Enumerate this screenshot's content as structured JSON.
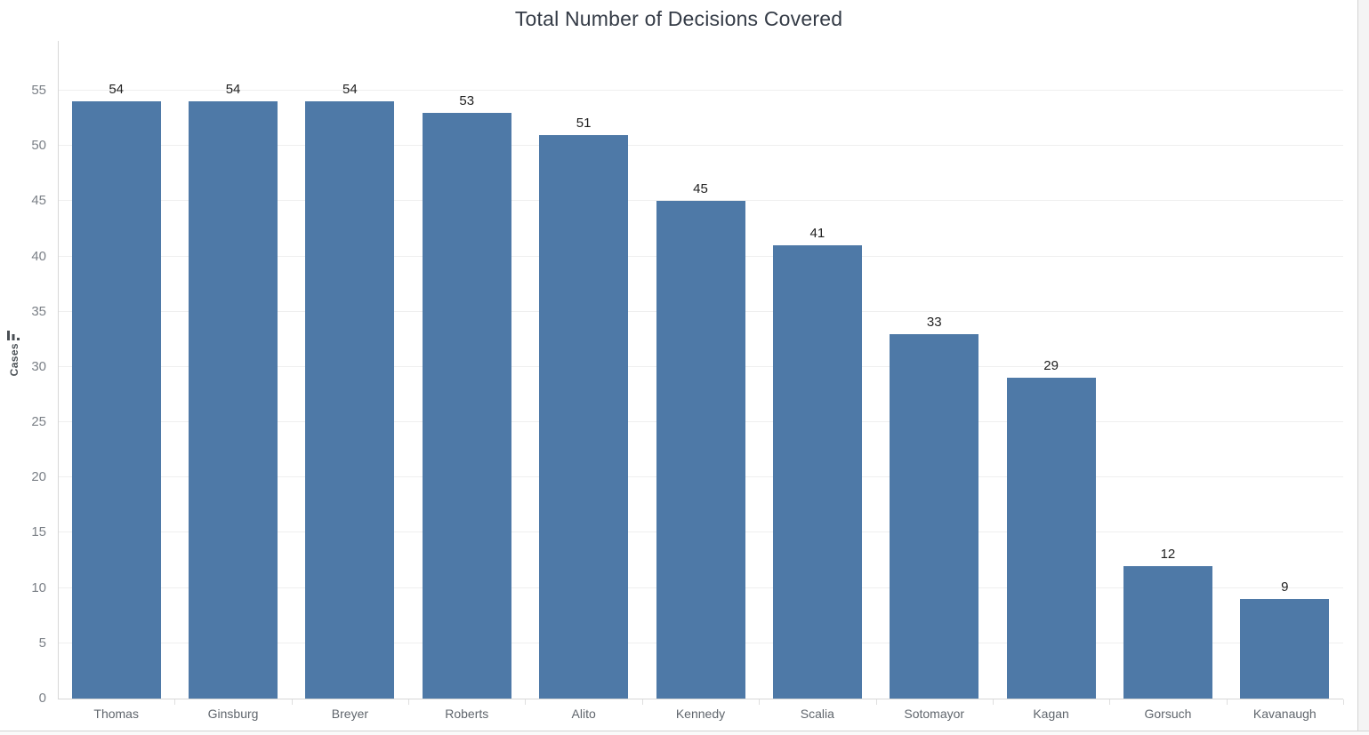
{
  "chart_data": {
    "type": "bar",
    "title": "Total Number of Decisions Covered",
    "xlabel": "",
    "ylabel": "Cases",
    "categories": [
      "Thomas",
      "Ginsburg",
      "Breyer",
      "Roberts",
      "Alito",
      "Kennedy",
      "Scalia",
      "Sotomayor",
      "Kagan",
      "Gorsuch",
      "Kavanaugh"
    ],
    "values": [
      54,
      54,
      54,
      53,
      51,
      45,
      41,
      33,
      29,
      12,
      9
    ],
    "yticks": [
      0,
      5,
      10,
      15,
      20,
      25,
      30,
      35,
      40,
      45,
      50,
      55
    ],
    "ylim": [
      0,
      59.5
    ],
    "grid": true,
    "legend_position": "none",
    "bar_color": "#4e79a7",
    "sort_icon": "sort-descending-bars",
    "colors": {
      "bar": "#4e79a7",
      "title": "#343b46",
      "tick_label": "#7b8087",
      "category_label": "#60666d",
      "value_label": "#1f1f1f",
      "gridline": "#efefef",
      "axis_line": "#d7d7d7",
      "border": "#d4d4d4"
    }
  }
}
